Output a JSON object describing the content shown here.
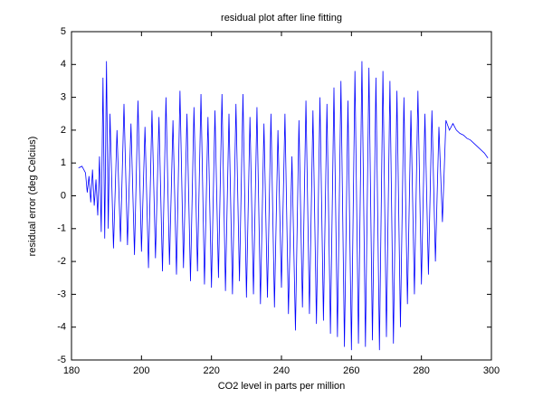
{
  "chart_data": {
    "type": "line",
    "title": "residual plot after line fitting",
    "x_label": "CO2 level in parts per million",
    "y_label": "residual error (deg Celcius)",
    "xlim": [
      180,
      300
    ],
    "ylim": [
      -5,
      5
    ],
    "xticks": [
      180,
      200,
      220,
      240,
      260,
      280,
      300
    ],
    "yticks": [
      -5,
      -4,
      -3,
      -2,
      -1,
      0,
      1,
      2,
      3,
      4,
      5
    ],
    "color": "#0000ff",
    "x": [
      182,
      183,
      184,
      184.5,
      185,
      185.5,
      186,
      186.5,
      187,
      187.5,
      188,
      188.5,
      189,
      189.5,
      190,
      190.5,
      191,
      192,
      193,
      194,
      195,
      196,
      197,
      198,
      199,
      200,
      201,
      202,
      203,
      204,
      205,
      206,
      207,
      208,
      209,
      210,
      211,
      212,
      213,
      214,
      215,
      216,
      217,
      218,
      219,
      220,
      221,
      222,
      223,
      224,
      225,
      226,
      227,
      228,
      229,
      230,
      231,
      232,
      233,
      234,
      235,
      236,
      237,
      238,
      239,
      240,
      241,
      242,
      243,
      244,
      245,
      246,
      247,
      248,
      249,
      250,
      251,
      252,
      253,
      254,
      255,
      256,
      257,
      258,
      259,
      260,
      261,
      262,
      263,
      264,
      265,
      266,
      267,
      268,
      269,
      270,
      271,
      272,
      273,
      274,
      275,
      276,
      277,
      278,
      279,
      280,
      281,
      282,
      283,
      284,
      285,
      286,
      287,
      288,
      289,
      290,
      291,
      292,
      293,
      294,
      295,
      296,
      297,
      298,
      299
    ],
    "values": [
      0.85,
      0.9,
      0.7,
      0.1,
      0.6,
      -0.2,
      0.8,
      -0.3,
      0.5,
      -0.6,
      1.2,
      -1.1,
      3.6,
      -1.3,
      4.1,
      -1.0,
      2.5,
      -1.6,
      2.0,
      -1.4,
      2.8,
      -1.5,
      2.2,
      -1.8,
      2.9,
      -1.7,
      2.1,
      -2.2,
      2.6,
      -1.9,
      2.4,
      -2.3,
      3.0,
      -2.1,
      2.3,
      -2.4,
      3.2,
      -2.2,
      2.5,
      -2.6,
      2.7,
      -2.3,
      3.1,
      -2.7,
      2.4,
      -2.8,
      2.6,
      -2.5,
      3.1,
      -2.9,
      2.5,
      -3.0,
      2.8,
      -2.6,
      3.1,
      -3.1,
      2.4,
      -3.0,
      2.7,
      -3.3,
      2.2,
      -3.1,
      2.5,
      -3.4,
      2.0,
      -2.8,
      2.5,
      -3.6,
      1.2,
      -4.1,
      2.3,
      -3.4,
      2.9,
      -3.6,
      2.6,
      -3.9,
      3.0,
      -3.8,
      2.8,
      -4.2,
      3.3,
      -4.3,
      3.5,
      -4.6,
      2.9,
      -4.7,
      3.8,
      -4.5,
      4.1,
      -4.6,
      3.9,
      -4.4,
      3.6,
      -4.7,
      3.8,
      -4.3,
      3.5,
      -4.5,
      3.2,
      -4.0,
      3.0,
      -3.3,
      2.6,
      -3.0,
      3.2,
      -2.7,
      2.5,
      -2.4,
      2.6,
      -2.0,
      2.1,
      -0.8,
      2.3,
      2.0,
      2.2,
      2.0,
      1.9,
      1.85,
      1.75,
      1.7,
      1.6,
      1.5,
      1.4,
      1.3,
      1.15
    ]
  }
}
